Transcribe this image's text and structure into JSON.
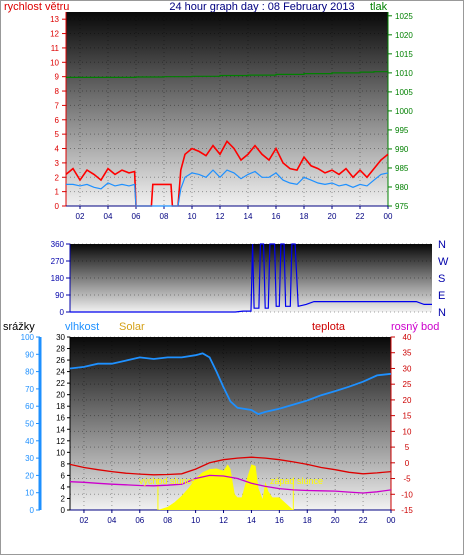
{
  "chart_data": [
    {
      "type": "line",
      "title": "24 hour graph day : 08 February 2013",
      "left_axis_label": "rychlost větru",
      "right_axis_label": "tlak",
      "x_ticks": [
        "02",
        "04",
        "06",
        "08",
        "10",
        "12",
        "14",
        "16",
        "18",
        "20",
        "22",
        "00"
      ],
      "left_ticks": [
        "0",
        "1",
        "2",
        "3",
        "4",
        "5",
        "6",
        "7",
        "8",
        "9",
        "10",
        "11",
        "12",
        "13"
      ],
      "right_ticks": [
        "975",
        "980",
        "985",
        "990",
        "995",
        "1000",
        "1005",
        "1010",
        "1015",
        "1020",
        "1025"
      ],
      "left_range": [
        0,
        13.5
      ],
      "right_range": [
        975,
        1026
      ],
      "x_range": [
        1,
        24
      ],
      "colors": {
        "gust": "#ff0000",
        "speed": "#1e90ff",
        "pressure": "#008000",
        "title": "#000080"
      },
      "series": [
        {
          "role": "gust",
          "axis": "left",
          "x": [
            1,
            1.5,
            2,
            2.5,
            3,
            3.5,
            4,
            4.5,
            5,
            5.5,
            5.9,
            6,
            7.1,
            7.2,
            8.5,
            8.6,
            9,
            9.2,
            9.5,
            10,
            10.5,
            11,
            11.5,
            12,
            12.5,
            13,
            13.5,
            14,
            14.5,
            15,
            15.5,
            16,
            16.5,
            17,
            17.5,
            18,
            18.5,
            19,
            19.5,
            20,
            20.5,
            21,
            21.5,
            22,
            22.5,
            23,
            23.5,
            24
          ],
          "y": [
            2.2,
            2.6,
            1.8,
            2.5,
            2.2,
            1.8,
            2.6,
            2.2,
            2.5,
            2.3,
            2.4,
            0,
            0,
            1.5,
            1.5,
            0,
            0,
            2.5,
            3.6,
            4.0,
            3.8,
            3.5,
            4.2,
            3.6,
            4.5,
            4.0,
            3.2,
            3.6,
            4.2,
            3.6,
            3.2,
            4.0,
            3.0,
            2.6,
            2.5,
            3.4,
            2.8,
            2.6,
            2.3,
            2.5,
            2.2,
            2.6,
            2.0,
            2.5,
            2.0,
            2.6,
            3.2,
            3.6
          ]
        },
        {
          "role": "speed",
          "axis": "left",
          "x": [
            1,
            1.5,
            2,
            2.5,
            3,
            3.5,
            4,
            4.5,
            5,
            5.5,
            5.9,
            6,
            7.1,
            7.2,
            8.5,
            8.6,
            9,
            9.2,
            9.5,
            10,
            10.5,
            11,
            11.5,
            12,
            12.5,
            13,
            13.5,
            14,
            14.5,
            15,
            15.5,
            16,
            16.5,
            17,
            17.5,
            18,
            18.5,
            19,
            19.5,
            20,
            20.5,
            21,
            21.5,
            22,
            22.5,
            23,
            23.5,
            24
          ],
          "y": [
            1.5,
            1.5,
            1.4,
            1.5,
            1.3,
            1.2,
            1.6,
            1.4,
            1.5,
            1.4,
            1.5,
            0,
            0,
            0,
            0,
            0,
            0,
            1.2,
            2.0,
            2.3,
            2.2,
            2.0,
            2.5,
            2.0,
            2.5,
            2.3,
            1.9,
            2.2,
            2.4,
            2.0,
            2.0,
            2.3,
            1.8,
            1.6,
            1.5,
            2.0,
            1.8,
            1.6,
            1.5,
            1.6,
            1.4,
            1.5,
            1.3,
            1.5,
            1.4,
            1.8,
            2.2,
            2.3
          ]
        },
        {
          "role": "pressure",
          "axis": "right",
          "x": [
            1,
            6,
            8,
            10,
            12,
            14,
            16,
            18,
            20,
            22,
            23,
            24
          ],
          "y": [
            1008.8,
            1008.9,
            1009.0,
            1009.1,
            1009.3,
            1009.4,
            1009.6,
            1009.8,
            1010.0,
            1010.2,
            1010.3,
            1010.6
          ]
        }
      ]
    },
    {
      "type": "line",
      "title": "",
      "left_ticks": [
        "0",
        "90",
        "180",
        "270",
        "360"
      ],
      "right_ticks": [
        "N",
        "W",
        "S",
        "E",
        "N"
      ],
      "left_range": [
        0,
        360
      ],
      "x_range": [
        1,
        24
      ],
      "colors": {
        "direction": "#0000ee"
      },
      "series": [
        {
          "role": "wind-direction",
          "axis": "left",
          "x": [
            1,
            9.5,
            10,
            10.5,
            11,
            11.5,
            12,
            12.5,
            12.6,
            12.7,
            13,
            13.1,
            13.3,
            13.4,
            13.6,
            13.7,
            14,
            14.1,
            14.3,
            14.4,
            14.6,
            14.7,
            15,
            15.1,
            15.3,
            15.5,
            16,
            16.5,
            23,
            23.5,
            24
          ],
          "y": [
            0,
            0,
            0,
            0,
            0,
            0,
            5,
            5,
            360,
            20,
            20,
            360,
            360,
            20,
            20,
            360,
            360,
            30,
            30,
            360,
            360,
            30,
            30,
            360,
            360,
            30,
            40,
            55,
            55,
            40,
            40
          ]
        }
      ]
    },
    {
      "type": "line",
      "title": "",
      "labels": {
        "rain": "srážky",
        "humidity": "vlhkost",
        "solar": "Solar",
        "temp": "teplota",
        "dew": "rosný bod"
      },
      "annotations": {
        "sunrise": "východ slunce",
        "sunset": "západ slunce"
      },
      "rain_ticks": [
        "0",
        "10",
        "20",
        "30",
        "40",
        "50",
        "60",
        "70",
        "80",
        "90",
        "100"
      ],
      "humidity_ticks": [
        "0",
        "2",
        "4",
        "6",
        "8",
        "10",
        "12",
        "14",
        "16",
        "18",
        "20",
        "22",
        "24",
        "26",
        "28",
        "30"
      ],
      "temp_ticks": [
        "-15",
        "-10",
        "-5",
        "0",
        "5",
        "10",
        "15",
        "20",
        "25",
        "30",
        "35",
        "40"
      ],
      "x_ticks": [
        "02",
        "04",
        "06",
        "08",
        "10",
        "12",
        "14",
        "16",
        "18",
        "20",
        "22",
        "00"
      ],
      "temp_range": [
        -15,
        40
      ],
      "x_range": [
        1,
        24
      ],
      "sunrise_x": 7.3,
      "sunset_x": 17.0,
      "colors": {
        "humidity": "#1e90ff",
        "temp": "#dd0000",
        "dew": "#cc00cc",
        "solar": "#ffff00",
        "rain": "#1e90ff",
        "rain_label": "#cc0000",
        "solar_label": "#d4a017",
        "temp_label": "#cc0000",
        "dew_label": "#cc00cc",
        "annotation": "#ffff00"
      },
      "series": [
        {
          "role": "temperature",
          "axis": "temp",
          "x": [
            1,
            2,
            3,
            4,
            5,
            6,
            7,
            8,
            9,
            10,
            11,
            12,
            13,
            14,
            15,
            16,
            17,
            18,
            19,
            20,
            21,
            22,
            23,
            24
          ],
          "y": [
            -0.5,
            -1.5,
            -2.2,
            -2.8,
            -3.3,
            -3.6,
            -3.8,
            -3.7,
            -3.5,
            -2.0,
            0.0,
            1.0,
            1.5,
            1.8,
            1.5,
            1.0,
            0.3,
            -0.5,
            -1.5,
            -2.2,
            -3.0,
            -3.5,
            -3.2,
            -2.8
          ]
        },
        {
          "role": "dew-point",
          "axis": "temp",
          "x": [
            1,
            2,
            3,
            4,
            5,
            6,
            7,
            8,
            9,
            10,
            11,
            12,
            13,
            14,
            15,
            16,
            17,
            18,
            19,
            20,
            21,
            22,
            23,
            24
          ],
          "y": [
            -6.0,
            -6.2,
            -6.5,
            -6.8,
            -7.0,
            -7.2,
            -7.3,
            -7.1,
            -6.8,
            -5.0,
            -4.0,
            -4.2,
            -5.0,
            -6.5,
            -7.5,
            -8.2,
            -8.6,
            -8.8,
            -8.9,
            -9.0,
            -9.3,
            -9.6,
            -9.2,
            -8.6
          ]
        },
        {
          "role": "humidity",
          "axis": "temp",
          "x": [
            1,
            2,
            3,
            4,
            5,
            6,
            7,
            8,
            9,
            10,
            10.5,
            11,
            11.5,
            12,
            12.5,
            13,
            14,
            14.5,
            15,
            16,
            17,
            18,
            19,
            20,
            21,
            22,
            23,
            24
          ],
          "y": [
            30,
            30.5,
            31.5,
            31.5,
            32.5,
            33.5,
            33,
            33.5,
            33.5,
            34.2,
            34.8,
            33.5,
            29,
            24,
            19.5,
            17.5,
            16.8,
            15.5,
            16.2,
            17.2,
            18.5,
            19.8,
            21.5,
            22.8,
            24.2,
            25.8,
            27.8,
            28.3
          ]
        },
        {
          "role": "solar",
          "axis": "temp",
          "x": [
            7.3,
            8,
            8.5,
            9,
            9.5,
            10,
            10.5,
            11,
            11.5,
            12,
            12.3,
            12.5,
            12.8,
            13,
            13.3,
            13.6,
            14,
            14.3,
            14.5,
            14.8,
            15,
            15.2,
            15.5,
            16,
            16.5,
            17
          ],
          "y": [
            -15,
            -14,
            -12.5,
            -10.5,
            -8,
            -5,
            -3,
            -2,
            -1.8,
            -2.5,
            -0.5,
            -2,
            -10,
            -11,
            -11,
            -6,
            -0.5,
            -1,
            -8,
            -11.5,
            -6,
            -9,
            -11,
            -11,
            -13,
            -15
          ]
        }
      ]
    }
  ]
}
